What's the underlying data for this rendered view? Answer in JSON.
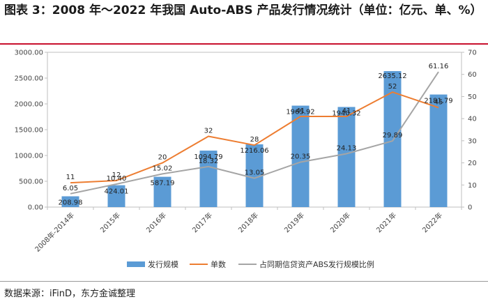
{
  "title": "图表 3：2008 年～2022 年我国 Auto-ABS 产品发行情况统计（单位：亿元、单、%）",
  "source": "数据来源：iFinD，东方金诚整理",
  "colors": {
    "bar": "#5b9bd5",
    "count": "#ed7d31",
    "ratio": "#a5a5a5",
    "axis": "#bfbfbf"
  },
  "chart_data": {
    "type": "bar",
    "title": "2008 年～2022 年我国 Auto-ABS 产品发行情况统计（单位：亿元、单、%）",
    "categories": [
      "2008年-2014年",
      "2015年",
      "2016年",
      "2017年",
      "2018年",
      "2019年",
      "2020年",
      "2021年",
      "2022年"
    ],
    "ylim": [
      0,
      3000
    ],
    "y2lim": [
      0,
      70
    ],
    "y_ticks": [
      "0.00",
      "500.00",
      "1000.00",
      "1500.00",
      "2000.00",
      "2500.00",
      "3000.00"
    ],
    "y2_ticks": [
      "0",
      "10",
      "20",
      "30",
      "40",
      "50",
      "60",
      "70"
    ],
    "series": [
      {
        "name": "发行规模",
        "type": "bar",
        "axis": "left",
        "values": [
          208.98,
          424.01,
          587.19,
          1094.79,
          1216.06,
          1965.92,
          1940.32,
          2635.12,
          2181.79
        ],
        "labels": [
          "208.98",
          "424.01",
          "587.19",
          "1094.79",
          "1216.06",
          "1965.92",
          "1940.32",
          "2635.12",
          "2181.79"
        ]
      },
      {
        "name": "单数",
        "type": "line",
        "axis": "right",
        "values": [
          11,
          12,
          20,
          32,
          28,
          41,
          41,
          52,
          45
        ],
        "labels": [
          "11",
          "12",
          "20",
          "32",
          "28",
          "41",
          "41",
          "52",
          "45"
        ]
      },
      {
        "name": "占同期信贷资产ABS发行规模比例",
        "type": "line",
        "axis": "right",
        "values": [
          6.05,
          10.4,
          15.02,
          18.32,
          13.05,
          20.35,
          24.13,
          29.89,
          61.16
        ],
        "labels": [
          "6.05",
          "10.40",
          "15.02",
          "18.32",
          "13.05",
          "20.35",
          "24.13",
          "29.89",
          "61.16"
        ]
      }
    ]
  }
}
